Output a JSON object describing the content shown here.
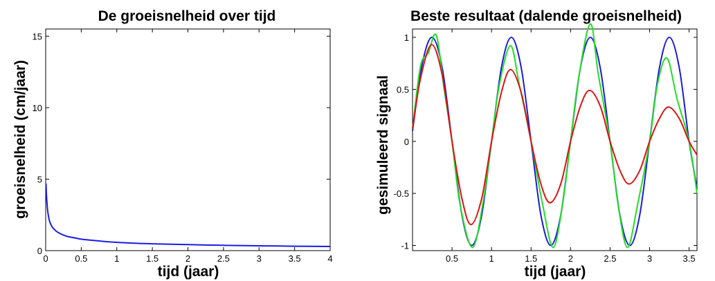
{
  "chart_data": [
    {
      "type": "line",
      "title": "De groeisnelheid over tijd",
      "xlabel": "tijd (jaar)",
      "ylabel": "groeisnelheid (cm/jaar)",
      "xlim": [
        0,
        4
      ],
      "ylim": [
        0,
        15.5
      ],
      "xticks": [
        0,
        0.5,
        1,
        1.5,
        2,
        2.5,
        3,
        3.5,
        4
      ],
      "xtick_labels": [
        "0",
        "0.5",
        "1",
        "1.5",
        "2",
        "2.5",
        "3",
        "3.5",
        "4"
      ],
      "yticks": [
        0,
        5,
        10,
        15
      ],
      "ytick_labels": [
        "0",
        "5",
        "10",
        "15"
      ],
      "grid": false,
      "series": [
        {
          "color": "#1a1ae6",
          "x": [
            0.005,
            0.01,
            0.02,
            0.03,
            0.05,
            0.075,
            0.1,
            0.15,
            0.2,
            0.3,
            0.4,
            0.5,
            0.6,
            0.8,
            1.0,
            1.25,
            1.5,
            2.0,
            2.5,
            3.0,
            3.5,
            4.0
          ],
          "values": [
            4.7,
            4.0,
            3.2,
            2.7,
            2.15,
            1.8,
            1.6,
            1.35,
            1.2,
            1.0,
            0.9,
            0.8,
            0.75,
            0.65,
            0.58,
            0.52,
            0.48,
            0.42,
            0.37,
            0.34,
            0.31,
            0.29
          ]
        }
      ]
    },
    {
      "type": "line",
      "title": "Beste resultaat (dalende groeisnelheid)",
      "xlabel": "tijd (jaar)",
      "ylabel": "gesimuleerd signaal",
      "xlim": [
        0,
        3.6
      ],
      "ylim": [
        -1.05,
        1.08
      ],
      "xticks": [
        0.5,
        1,
        1.5,
        2,
        2.5,
        3,
        3.5
      ],
      "xtick_labels": [
        "0.5",
        "1",
        "1.5",
        "2",
        "2.5",
        "3",
        "3.5"
      ],
      "yticks": [
        -1,
        -0.5,
        0,
        0.5,
        1
      ],
      "ytick_labels": [
        "-1",
        "-0.5",
        "0",
        "0.5",
        "1"
      ],
      "grid": false,
      "series": [
        {
          "color": "#1a1ad9",
          "x": [
            0,
            0.125,
            0.25,
            0.375,
            0.5,
            0.625,
            0.75,
            0.875,
            1.0,
            1.125,
            1.25,
            1.375,
            1.5,
            1.625,
            1.75,
            1.875,
            2.0,
            2.125,
            2.25,
            2.375,
            2.5,
            2.625,
            2.75,
            2.875,
            3.0,
            3.125,
            3.25,
            3.375,
            3.5,
            3.6
          ],
          "values": [
            0.1,
            0.75,
            1.0,
            0.71,
            0.0,
            -0.71,
            -1.0,
            -0.71,
            0.0,
            0.71,
            1.0,
            0.71,
            0.0,
            -0.71,
            -1.0,
            -0.71,
            0.0,
            0.71,
            1.0,
            0.71,
            0.0,
            -0.71,
            -1.0,
            -0.71,
            0.0,
            0.71,
            1.0,
            0.71,
            0.0,
            -0.45
          ]
        },
        {
          "color": "#22dd22",
          "x": [
            0,
            0.1,
            0.2,
            0.3,
            0.4,
            0.5,
            0.6,
            0.76,
            0.9,
            1.0,
            1.1,
            1.24,
            1.35,
            1.5,
            1.65,
            1.78,
            1.9,
            2.0,
            2.1,
            2.25,
            2.35,
            2.5,
            2.6,
            2.72,
            2.85,
            3.0,
            3.1,
            3.22,
            3.35,
            3.5,
            3.6
          ],
          "values": [
            0.12,
            0.72,
            0.85,
            1.02,
            0.5,
            0.0,
            -0.6,
            -1.02,
            -0.55,
            0.0,
            0.55,
            0.92,
            0.55,
            0.0,
            -0.62,
            -1.02,
            -0.6,
            0.0,
            0.6,
            1.13,
            0.65,
            0.0,
            -0.6,
            -1.02,
            -0.6,
            0.0,
            0.55,
            0.8,
            0.4,
            0.0,
            -0.5
          ]
        },
        {
          "color": "#dd1111",
          "x": [
            0,
            0.1,
            0.24,
            0.375,
            0.5,
            0.625,
            0.74,
            0.875,
            1.0,
            1.125,
            1.24,
            1.375,
            1.5,
            1.625,
            1.74,
            1.875,
            2.0,
            2.125,
            2.24,
            2.375,
            2.5,
            2.625,
            2.74,
            2.875,
            3.0,
            3.125,
            3.24,
            3.375,
            3.5,
            3.6
          ],
          "values": [
            0.12,
            0.6,
            0.93,
            0.64,
            0.0,
            -0.55,
            -0.8,
            -0.55,
            0.0,
            0.47,
            0.69,
            0.47,
            0.0,
            -0.41,
            -0.59,
            -0.41,
            0.0,
            0.34,
            0.49,
            0.34,
            0.0,
            -0.28,
            -0.41,
            -0.28,
            0.0,
            0.22,
            0.33,
            0.22,
            0.0,
            -0.13
          ]
        }
      ]
    }
  ]
}
